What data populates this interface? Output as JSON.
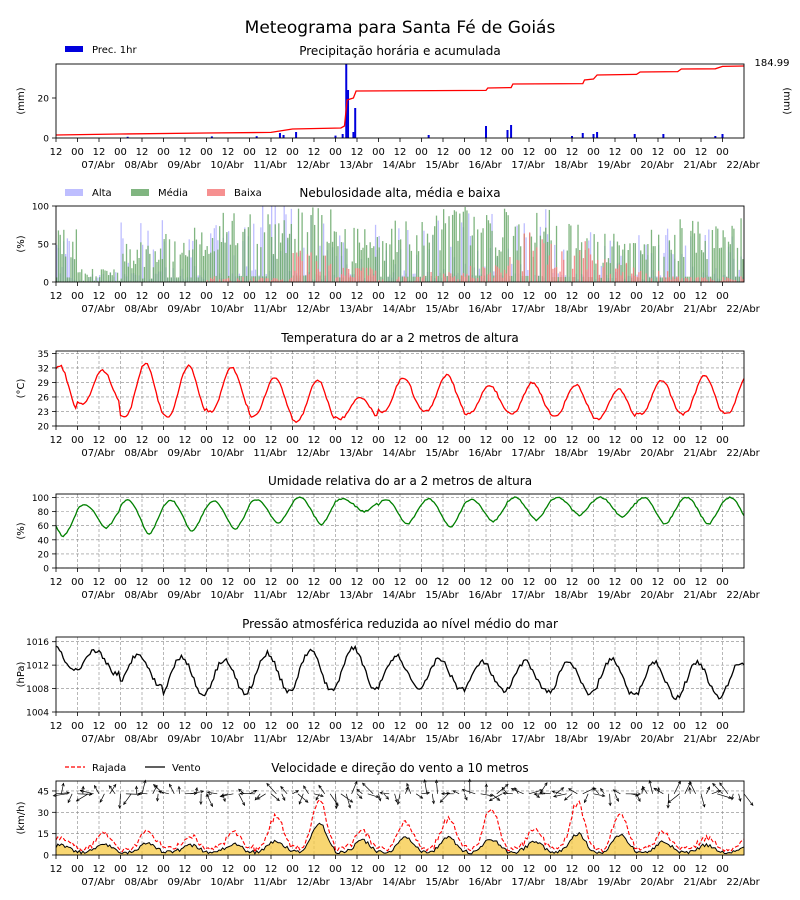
{
  "title": "Meteograma para Santa Fé de Goiás",
  "time_axis": {
    "hour_labels": [
      "12",
      "00",
      "12",
      "00",
      "12",
      "00",
      "12",
      "00",
      "12",
      "00",
      "12",
      "00",
      "12",
      "00",
      "12",
      "00",
      "12",
      "00",
      "12",
      "00",
      "12",
      "00",
      "12",
      "00",
      "12",
      "00",
      "12",
      "00",
      "12",
      "00",
      "12",
      "00"
    ],
    "day_labels": [
      "07/Abr",
      "08/Abr",
      "09/Abr",
      "10/Abr",
      "11/Abr",
      "12/Abr",
      "13/Abr",
      "14/Abr",
      "15/Abr",
      "16/Abr",
      "17/Abr",
      "18/Abr",
      "19/Abr",
      "20/Abr",
      "21/Abr",
      "22/Abr"
    ],
    "start": "2025-04-06 12:00",
    "end": "2025-04-22 12:00"
  },
  "chart_data": [
    {
      "id": "precip",
      "type": "bar",
      "title": "Precipitação horária e acumulada",
      "ylabel": "(mm)",
      "ylabel_right": "(mm)",
      "accum_label": "184.99",
      "legend": [
        "Prec. 1hr"
      ],
      "ylim": [
        0,
        37
      ],
      "yticks": [
        "0",
        "20"
      ],
      "colors": {
        "bars": "#0000dd",
        "accum": "#ff0000"
      },
      "hourly_bars": [
        {
          "t": "2025-04-08 04:00",
          "v": 0.6
        },
        {
          "t": "2025-04-10 03:00",
          "v": 0.8
        },
        {
          "t": "2025-04-11 04:00",
          "v": 0.9
        },
        {
          "t": "2025-04-11 17:00",
          "v": 2.5
        },
        {
          "t": "2025-04-11 19:00",
          "v": 1.5
        },
        {
          "t": "2025-04-12 02:00",
          "v": 3.0
        },
        {
          "t": "2025-04-13 00:00",
          "v": 1.2
        },
        {
          "t": "2025-04-13 04:00",
          "v": 2.0
        },
        {
          "t": "2025-04-13 06:00",
          "v": 37
        },
        {
          "t": "2025-04-13 07:00",
          "v": 24
        },
        {
          "t": "2025-04-13 10:00",
          "v": 3.0
        },
        {
          "t": "2025-04-13 11:00",
          "v": 15
        },
        {
          "t": "2025-04-15 04:00",
          "v": 1.5
        },
        {
          "t": "2025-04-16 12:00",
          "v": 6.0
        },
        {
          "t": "2025-04-17 00:00",
          "v": 4.0
        },
        {
          "t": "2025-04-17 02:00",
          "v": 6.5
        },
        {
          "t": "2025-04-18 12:00",
          "v": 1.0
        },
        {
          "t": "2025-04-18 18:00",
          "v": 2.5
        },
        {
          "t": "2025-04-19 00:00",
          "v": 2.0
        },
        {
          "t": "2025-04-19 02:00",
          "v": 3.0
        },
        {
          "t": "2025-04-19 23:00",
          "v": 2.0
        },
        {
          "t": "2025-04-20 15:00",
          "v": 2.0
        },
        {
          "t": "2025-04-21 20:00",
          "v": 1.0
        },
        {
          "t": "2025-04-22 00:00",
          "v": 2.0
        }
      ],
      "accum_series": [
        {
          "t": "2025-04-06 12:00",
          "v": 1.5
        },
        {
          "t": "2025-04-08 00:00",
          "v": 2.0
        },
        {
          "t": "2025-04-10 00:00",
          "v": 2.5
        },
        {
          "t": "2025-04-11 12:00",
          "v": 2.8
        },
        {
          "t": "2025-04-12 00:00",
          "v": 4.5
        },
        {
          "t": "2025-04-13 03:00",
          "v": 5.0
        },
        {
          "t": "2025-04-13 05:00",
          "v": 6.0
        },
        {
          "t": "2025-04-13 06:30",
          "v": 19.0
        },
        {
          "t": "2025-04-13 10:00",
          "v": 20.0
        },
        {
          "t": "2025-04-13 11:30",
          "v": 23.5
        },
        {
          "t": "2025-04-16 12:00",
          "v": 23.8
        },
        {
          "t": "2025-04-16 13:00",
          "v": 25.0
        },
        {
          "t": "2025-04-17 02:00",
          "v": 25.2
        },
        {
          "t": "2025-04-17 03:00",
          "v": 27.0
        },
        {
          "t": "2025-04-18 18:00",
          "v": 27.2
        },
        {
          "t": "2025-04-18 19:00",
          "v": 29.0
        },
        {
          "t": "2025-04-19 00:00",
          "v": 29.5
        },
        {
          "t": "2025-04-19 02:00",
          "v": 31.5
        },
        {
          "t": "2025-04-20 00:00",
          "v": 31.8
        },
        {
          "t": "2025-04-20 02:00",
          "v": 33.0
        },
        {
          "t": "2025-04-20 23:00",
          "v": 33.2
        },
        {
          "t": "2025-04-21 01:00",
          "v": 34.5
        },
        {
          "t": "2025-04-21 20:00",
          "v": 34.6
        },
        {
          "t": "2025-04-22 00:00",
          "v": 35.8
        },
        {
          "t": "2025-04-22 12:00",
          "v": 36.0
        }
      ]
    },
    {
      "id": "clouds",
      "type": "bar",
      "title": "Nebulosidade alta, média e baixa",
      "ylabel": "(%)",
      "legend": [
        "Alta",
        "Média",
        "Baixa"
      ],
      "colors": {
        "alta": "#b3b3ff",
        "media": "#6aa86a",
        "baixa": "#f47c7c"
      },
      "ylim": [
        0,
        100
      ],
      "yticks": [
        "0",
        "50",
        "100"
      ],
      "daily_typical": [
        {
          "day": "07/Abr",
          "alta": 45,
          "media": 60,
          "baixa": 0
        },
        {
          "day": "08/Abr",
          "alta": 10,
          "media": 15,
          "baixa": 0
        },
        {
          "day": "09/Abr",
          "alta": 70,
          "media": 45,
          "baixa": 0
        },
        {
          "day": "10/Abr",
          "alta": 45,
          "media": 60,
          "baixa": 0
        },
        {
          "day": "11/Abr",
          "alta": 60,
          "media": 80,
          "baixa": 5
        },
        {
          "day": "12/Abr",
          "alta": 90,
          "media": 75,
          "baixa": 5
        },
        {
          "day": "13/Abr",
          "alta": 80,
          "media": 85,
          "baixa": 30
        },
        {
          "day": "14/Abr",
          "alta": 60,
          "media": 60,
          "baixa": 15
        },
        {
          "day": "15/Abr",
          "alta": 60,
          "media": 70,
          "baixa": 5
        },
        {
          "day": "16/Abr",
          "alta": 70,
          "media": 80,
          "baixa": 10
        },
        {
          "day": "17/Abr",
          "alta": 70,
          "media": 85,
          "baixa": 15
        },
        {
          "day": "18/Abr",
          "alta": 75,
          "media": 80,
          "baixa": 45
        },
        {
          "day": "19/Abr",
          "alta": 60,
          "media": 65,
          "baixa": 40
        },
        {
          "day": "20/Abr",
          "alta": 50,
          "media": 55,
          "baixa": 20
        },
        {
          "day": "21/Abr",
          "alta": 55,
          "media": 60,
          "baixa": 10
        },
        {
          "day": "22/Abr",
          "alta": 55,
          "media": 70,
          "baixa": 5
        }
      ]
    },
    {
      "id": "temp",
      "type": "line",
      "title": "Temperatura do ar a 2 metros de altura",
      "ylabel": "(°C)",
      "ylim": [
        20,
        35.5
      ],
      "yticks": [
        "20",
        "23",
        "26",
        "29",
        "32",
        "35"
      ],
      "color": "#ff0000",
      "daily_max": [
        32.5,
        31.5,
        33.0,
        32.5,
        32.0,
        30.0,
        29.5,
        26.0,
        30.0,
        30.5,
        28.5,
        29.0,
        28.5,
        27.5,
        29.5,
        30.5
      ],
      "daily_min": [
        22.5,
        24.5,
        22.0,
        22.0,
        23.0,
        22.0,
        21.0,
        21.5,
        23.0,
        23.0,
        22.5,
        22.5,
        22.0,
        21.5,
        22.5,
        22.5
      ]
    },
    {
      "id": "rh",
      "type": "line",
      "title": "Umidade relativa do ar a 2 metros de altura",
      "ylabel": "(%)",
      "ylim": [
        0,
        105
      ],
      "yticks": [
        "0",
        "20",
        "40",
        "60",
        "80",
        "100"
      ],
      "color": "#008000",
      "daily_min": [
        45,
        57,
        48,
        52,
        55,
        63,
        62,
        80,
        62,
        58,
        66,
        68,
        75,
        72,
        62,
        62
      ],
      "daily_max": [
        88,
        90,
        97,
        96,
        95,
        97,
        100,
        98,
        97,
        98,
        97,
        100,
        100,
        100,
        100,
        100
      ]
    },
    {
      "id": "pres",
      "type": "line",
      "title": "Pressão atmosférica reduzida ao nível médio do mar",
      "ylabel": "(hPa)",
      "ylim": [
        1004,
        1016.8
      ],
      "yticks": [
        "1004",
        "1008",
        "1012",
        "1016"
      ],
      "color": "#000000",
      "daily_max": [
        1015.5,
        1014.5,
        1014.0,
        1013.5,
        1013.0,
        1014.0,
        1014.5,
        1015.0,
        1013.5,
        1013.0,
        1012.5,
        1012.5,
        1012.5,
        1013.0,
        1012.5,
        1012.5
      ],
      "daily_min": [
        1011.0,
        1010.5,
        1008.5,
        1007.0,
        1007.0,
        1007.5,
        1007.5,
        1008.0,
        1008.0,
        1008.0,
        1007.5,
        1007.5,
        1007.0,
        1007.0,
        1006.5,
        1006.5
      ]
    },
    {
      "id": "wind",
      "type": "line",
      "title": "Velocidade e direção do vento a 10 metros",
      "ylabel": "(km/h)",
      "legend": [
        "Rajada",
        "Vento"
      ],
      "ylim": [
        0,
        52
      ],
      "yticks": [
        "0",
        "15",
        "30",
        "45"
      ],
      "colors": {
        "rajada": "#ff0000",
        "vento": "#000000",
        "fill": "#f5c842"
      },
      "daily_vento_max": [
        7,
        7,
        8,
        7,
        8,
        10,
        22,
        10,
        12,
        12,
        11,
        9,
        15,
        14,
        9,
        7
      ],
      "daily_rajada_max": [
        10,
        12,
        14,
        10,
        14,
        25,
        35,
        14,
        20,
        22,
        30,
        15,
        34,
        26,
        13,
        10
      ],
      "arrow_row_value": 43
    }
  ]
}
